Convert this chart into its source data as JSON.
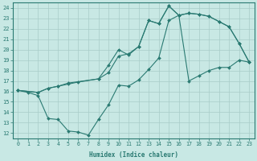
{
  "xlabel": "Humidex (Indice chaleur)",
  "xlim": [
    -0.5,
    23.5
  ],
  "ylim": [
    11.5,
    24.5
  ],
  "xticks": [
    0,
    1,
    2,
    3,
    4,
    5,
    6,
    7,
    8,
    9,
    10,
    11,
    12,
    13,
    14,
    15,
    16,
    17,
    18,
    19,
    20,
    21,
    22,
    23
  ],
  "yticks": [
    12,
    13,
    14,
    15,
    16,
    17,
    18,
    19,
    20,
    21,
    22,
    23,
    24
  ],
  "bg_color": "#c8e8e4",
  "line_color": "#2a7a72",
  "grid_color": "#a8ccc8",
  "line1_x": [
    0,
    1,
    2,
    3,
    4,
    5,
    6,
    7,
    8,
    9,
    10,
    11,
    12,
    13,
    14,
    15,
    16,
    17,
    18,
    19,
    20,
    21,
    22,
    23
  ],
  "line1_y": [
    16.1,
    15.9,
    15.6,
    13.4,
    13.3,
    12.2,
    12.1,
    11.8,
    13.3,
    14.7,
    16.6,
    16.5,
    17.1,
    18.1,
    19.2,
    22.8,
    23.3,
    17.0,
    17.5,
    18.0,
    18.3,
    18.3,
    19.0,
    18.8
  ],
  "line2_x": [
    0,
    2,
    3,
    4,
    5,
    8,
    9,
    10,
    11,
    12,
    13,
    14,
    15,
    16,
    17,
    18,
    19,
    20,
    21,
    22,
    23
  ],
  "line2_y": [
    16.1,
    15.9,
    16.3,
    16.5,
    16.8,
    17.2,
    17.8,
    19.4,
    19.6,
    20.3,
    22.8,
    22.5,
    24.2,
    23.3,
    23.5,
    23.4,
    23.2,
    22.7,
    22.2,
    20.6,
    18.8
  ],
  "line3_x": [
    0,
    2,
    3,
    4,
    5,
    6,
    8,
    9,
    10,
    11,
    12,
    13,
    14,
    15,
    16,
    17,
    18,
    19,
    20,
    21,
    22,
    23
  ],
  "line3_y": [
    16.1,
    15.9,
    16.3,
    16.5,
    16.7,
    16.9,
    17.2,
    18.5,
    20.0,
    19.5,
    20.3,
    22.8,
    22.5,
    24.2,
    23.3,
    23.5,
    23.4,
    23.2,
    22.7,
    22.2,
    20.6,
    18.8
  ]
}
